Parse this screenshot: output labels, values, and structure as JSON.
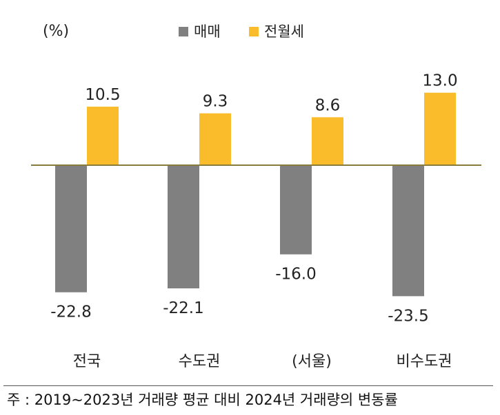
{
  "chart_data": {
    "type": "bar",
    "unit_label": "(%)",
    "categories": [
      "전국",
      "수도권",
      "(서울)",
      "비수도권"
    ],
    "series": [
      {
        "name": "매매",
        "color": "#808080",
        "values": [
          -22.8,
          -22.1,
          -16.0,
          -23.5
        ],
        "labels": [
          "-22.8",
          "-22.1",
          "-16.0",
          "-23.5"
        ]
      },
      {
        "name": "전월세",
        "color": "#FBBC2B",
        "values": [
          10.5,
          9.3,
          8.6,
          13.0
        ],
        "labels": [
          "10.5",
          "9.3",
          "8.6",
          "13.0"
        ]
      }
    ],
    "legend_position": "top",
    "grid": false,
    "baseline_color": "#8B7A3A"
  },
  "footnote": "주 : 2019~2023년 거래량 평균 대비 2024년 거래량의 변동률"
}
